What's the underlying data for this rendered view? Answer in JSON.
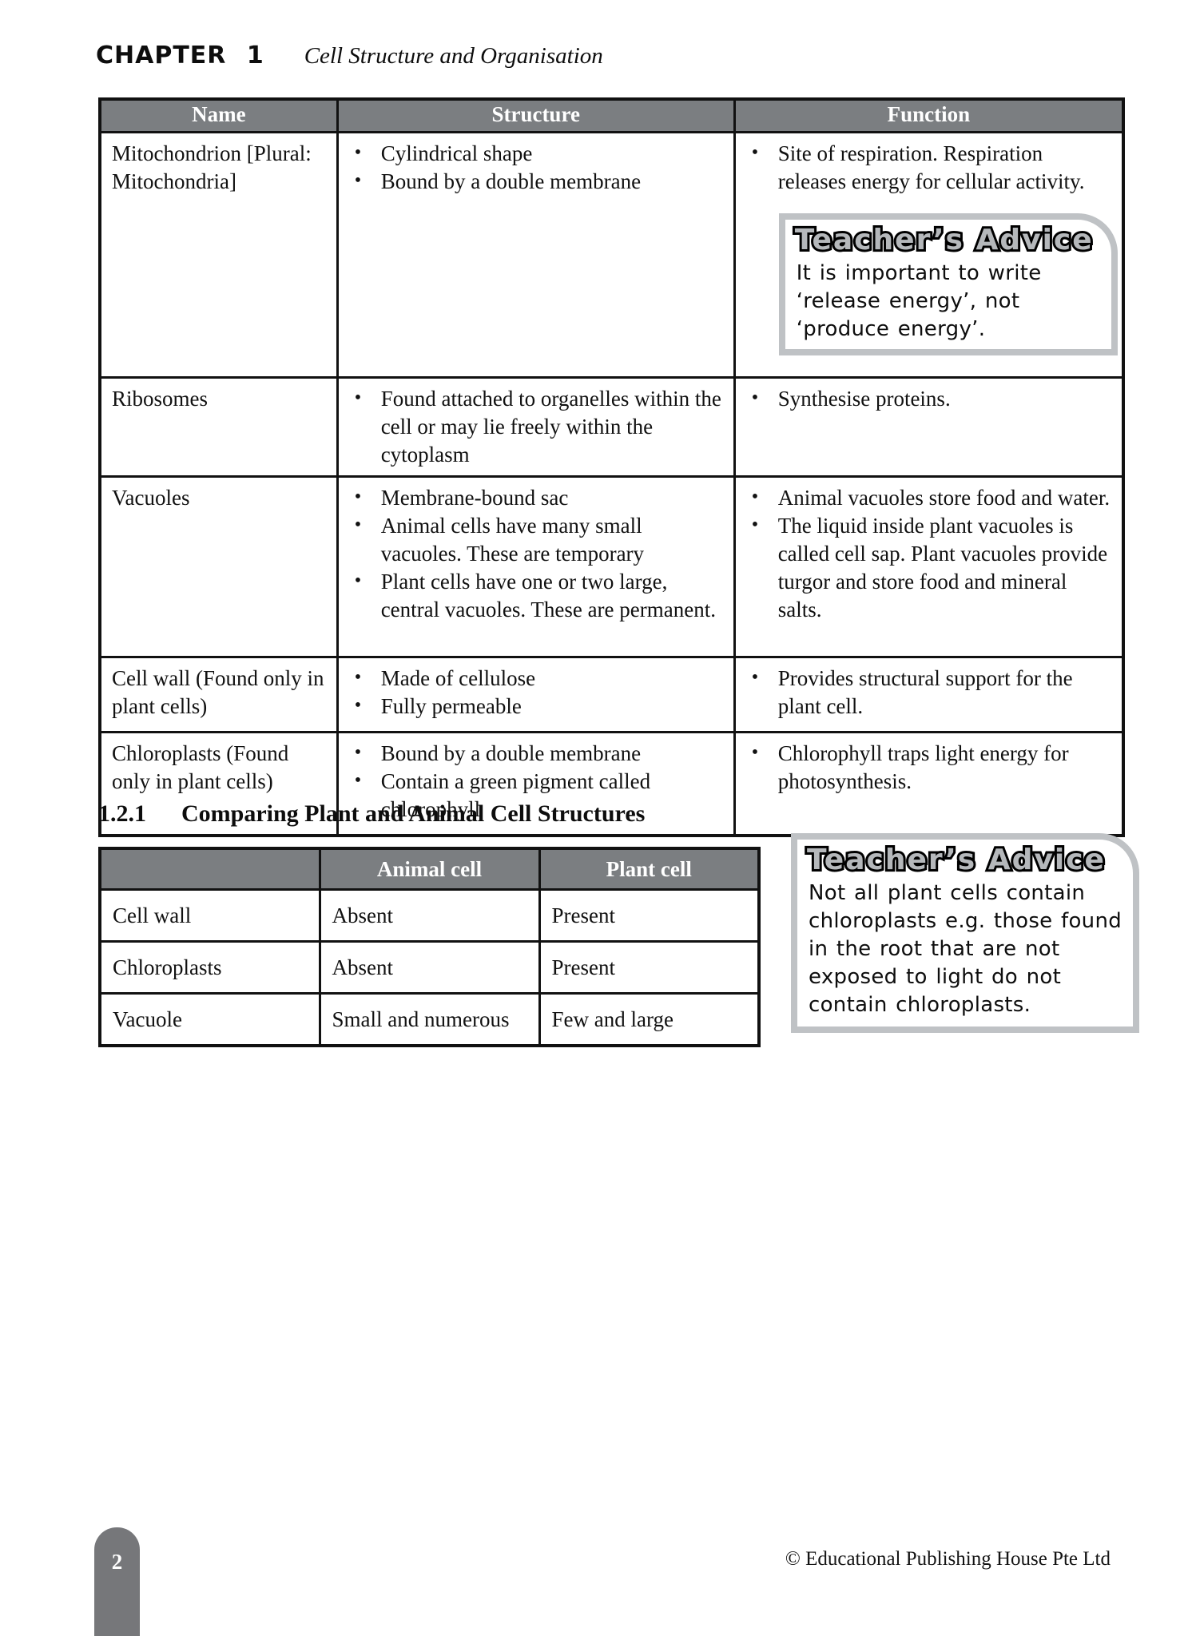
{
  "colors": {
    "table_header_bg": "#7b7e81",
    "advice_border": "#bfc2c5",
    "advice_title_fill": "#b5b8bb",
    "footer_tab_bg": "#76777a",
    "text": "#111111"
  },
  "page": {
    "chapter_label": "CHAPTER 1",
    "chapter_title": "Cell Structure and Organisation",
    "page_number": "2",
    "copyright": "© Educational Publishing House Pte Ltd"
  },
  "organelle_table": {
    "headers": [
      "Name",
      "Structure",
      "Function"
    ],
    "rows": [
      {
        "name": "Mitochondrion [Plural: Mitochondria]",
        "structure": [
          "Cylindrical shape",
          "Bound by a double membrane"
        ],
        "function": [
          "Site of respiration. Respiration releases energy for cellular activity."
        ]
      },
      {
        "name": "Ribosomes",
        "structure": [
          "Found attached to organelles within the cell or may lie freely within the cytoplasm"
        ],
        "function": [
          "Synthesise proteins."
        ]
      },
      {
        "name": "Vacuoles",
        "structure": [
          "Membrane-bound sac",
          "Animal cells have many small vacuoles. These are temporary",
          "Plant cells have one or two large, central vacuoles. These are permanent."
        ],
        "function": [
          "Animal vacuoles store food and water.",
          "The liquid inside plant vacuoles is called cell sap. Plant vacuoles provide turgor and store food and mineral salts."
        ]
      },
      {
        "name": "Cell wall (Found only in plant cells)",
        "structure": [
          "Made of cellulose",
          "Fully permeable"
        ],
        "function": [
          "Provides structural support for the plant cell."
        ]
      },
      {
        "name": "Chloroplasts (Found only in plant cells)",
        "structure": [
          "Bound by a double membrane",
          "Contain a green pigment called chlorophyll"
        ],
        "function": [
          "Chlorophyll traps light energy for photosynthesis."
        ]
      }
    ]
  },
  "advice_boxes": [
    {
      "title": "Teacher’s Advice",
      "text": "It is important to write ‘release energy’, not ‘produce energy’."
    },
    {
      "title": "Teacher’s Advice",
      "text": "Not all plant cells contain chloroplasts e.g. those found in the root that are not exposed to light do not contain chloroplasts."
    }
  ],
  "section": {
    "number": "1.2.1",
    "title": "Comparing Plant and Animal Cell Structures"
  },
  "comparison_table": {
    "headers": [
      "",
      "Animal cell",
      "Plant cell"
    ],
    "rows": [
      [
        "Cell wall",
        "Absent",
        "Present"
      ],
      [
        "Chloroplasts",
        "Absent",
        "Present"
      ],
      [
        "Vacuole",
        "Small and numerous",
        "Few and large"
      ]
    ]
  }
}
